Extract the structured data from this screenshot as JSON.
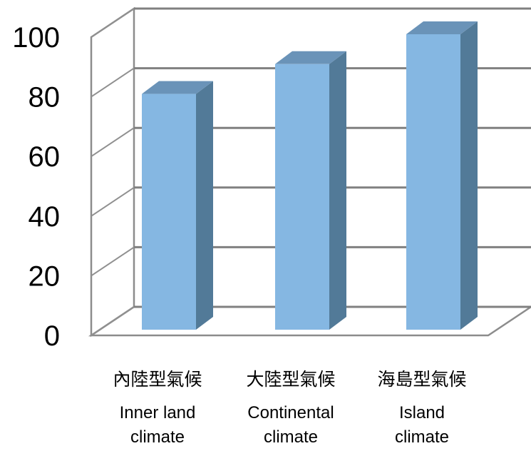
{
  "chart_data": {
    "type": "bar",
    "categories": [
      "內陸型氣候",
      "大陸型氣候",
      "海島型氣候"
    ],
    "categories_en": [
      [
        "Inner land",
        "climate"
      ],
      [
        "Continental",
        "climate"
      ],
      [
        "Island",
        "climate"
      ]
    ],
    "values": [
      80,
      90,
      100
    ],
    "ylim": [
      0,
      100
    ],
    "yticks": [
      "0",
      "20",
      "40",
      "60",
      "80",
      "100"
    ],
    "grid": true,
    "bar_colors": {
      "front": "#85B7E2",
      "side": "#527A98",
      "top": "#6A93B8"
    }
  }
}
